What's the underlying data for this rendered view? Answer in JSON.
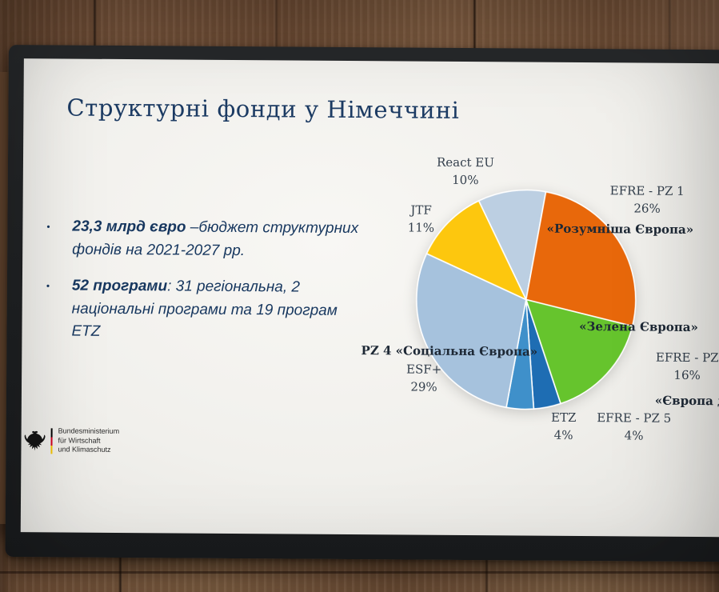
{
  "slide": {
    "title": "Структурні фонди у Німеччині",
    "bullet_char": "•",
    "bullets": [
      {
        "bold": "23,3 млрд євро",
        "rest": " –бюджет структурних фондів на 2021-2027 рр."
      },
      {
        "bold": "52 програми",
        "rest": ": 31 регіональна, 2 національні програми та 19 програм ETZ"
      }
    ],
    "logo": {
      "line1": "Bundesministerium",
      "line2": "für Wirtschaft",
      "line3": "und Klimaschutz"
    }
  },
  "chart_data": {
    "type": "pie",
    "title": "",
    "start_angle_deg": -26,
    "slices": [
      {
        "id": "react-eu",
        "label": "React EU",
        "value": 10,
        "color": "#bccfe2"
      },
      {
        "id": "efre-pz1",
        "label": "EFRE - PZ 1",
        "value": 26,
        "color": "#e8680b"
      },
      {
        "id": "efre-pz2",
        "label": "EFRE - PZ",
        "value": 16,
        "color": "#66c42d"
      },
      {
        "id": "efre-pz5",
        "label": "EFRE - PZ 5",
        "value": 4,
        "color": "#1e6db3"
      },
      {
        "id": "etz",
        "label": "ETZ",
        "value": 4,
        "color": "#3f90ca"
      },
      {
        "id": "esf-plus",
        "label": "ESF+",
        "value": 29,
        "color": "#a6c2dd"
      },
      {
        "id": "jtf",
        "label": "JTF",
        "value": 11,
        "color": "#fdc70e"
      }
    ],
    "labels": {
      "react_eu": {
        "name": "React EU",
        "pct": "10%"
      },
      "jtf": {
        "name": "JTF",
        "pct": "11%"
      },
      "efre_pz1": {
        "name": "EFRE - PZ 1",
        "pct": "26%"
      },
      "smart_europe": {
        "text": "«Розумніша Європа»"
      },
      "green_europe": {
        "text": "«Зелена Європа»"
      },
      "efre_pz2": {
        "name": "EFRE - PZ",
        "pct": "16%"
      },
      "europe_closer": {
        "text": "«Європа д"
      },
      "social_europe": {
        "text": "PZ 4 «Соціальна Європа»"
      },
      "esf_plus": {
        "name": "ESF+",
        "pct": "29%"
      },
      "etz": {
        "name": "ETZ",
        "pct": "4%"
      },
      "efre_pz5": {
        "name": "EFRE - PZ 5",
        "pct": "4%"
      }
    }
  }
}
